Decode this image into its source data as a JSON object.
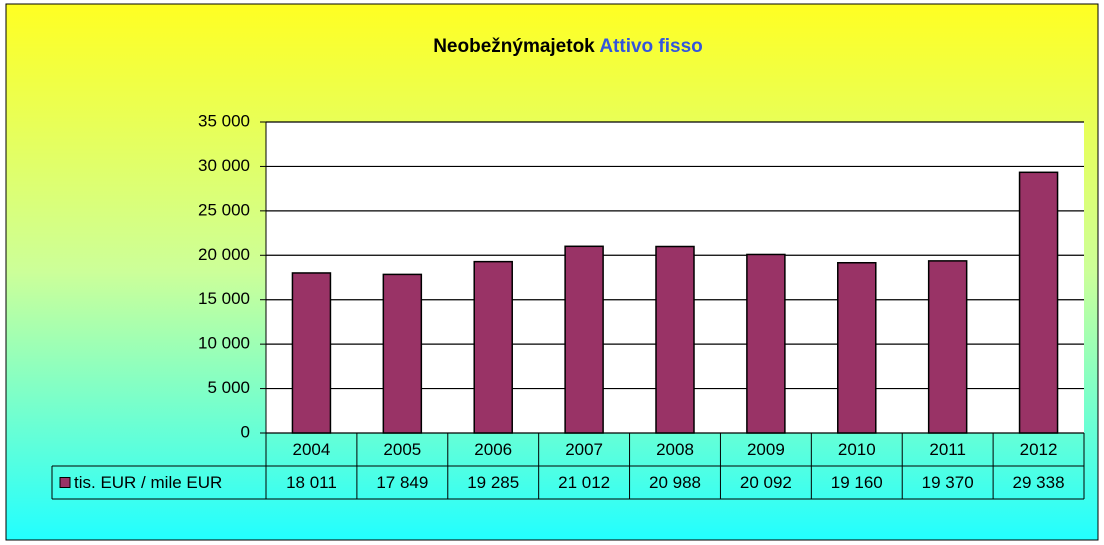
{
  "chart_data": {
    "type": "bar",
    "title": "Neobežnýmajetok",
    "subtitle": "Attivo fisso",
    "categories": [
      "2004",
      "2005",
      "2006",
      "2007",
      "2008",
      "2009",
      "2010",
      "2011",
      "2012"
    ],
    "series": [
      {
        "name": "tis. EUR / mile EUR",
        "color": "#993366",
        "values": [
          18011,
          17849,
          19285,
          21012,
          20988,
          20092,
          19160,
          19370,
          29338
        ],
        "value_labels": [
          "18 011",
          "17 849",
          "19 285",
          "21 012",
          "20 988",
          "20 092",
          "19 160",
          "19 370",
          "29 338"
        ]
      }
    ],
    "ylim": [
      0,
      35000
    ],
    "yticks": [
      0,
      {
        "value": 5000,
        "label": "5 000"
      },
      {
        "value": 10000,
        "label": "10 000"
      },
      {
        "value": 15000,
        "label": "15 000"
      },
      {
        "value": 20000,
        "label": "20 000"
      },
      {
        "value": 25000,
        "label": "25 000"
      },
      {
        "value": 30000,
        "label": "30 000"
      },
      {
        "value": 35000,
        "label": "35 000"
      }
    ],
    "grid": true
  }
}
